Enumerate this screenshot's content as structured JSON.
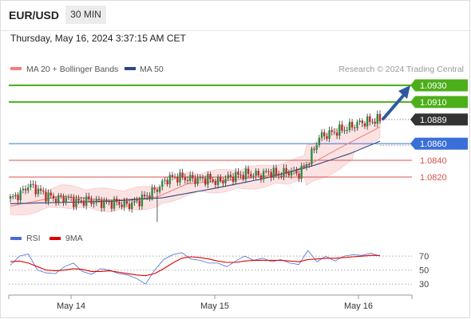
{
  "header": {
    "symbol": "EUR/USD",
    "timeframe": "30 MIN"
  },
  "datetime": "Thursday, May 16, 2024 3:37:15 AM CET",
  "legend": {
    "ma20": {
      "label": "MA 20 + Bollinger Bands",
      "color": "#f08080"
    },
    "ma50": {
      "label": "MA 50",
      "color": "#2c4a7f"
    }
  },
  "credit": "Research © 2024 Trading Central",
  "levels": [
    {
      "value": "1.0930",
      "type": "resistance",
      "color": "#4caf1a"
    },
    {
      "value": "1.0910",
      "type": "resistance",
      "color": "#4caf1a"
    },
    {
      "value": "1.0889",
      "type": "last-price",
      "color": "#333333"
    },
    {
      "value": "1.0860",
      "type": "pivot",
      "color": "#3a6fd8"
    },
    {
      "value": "1.0840",
      "type": "support",
      "color": "#d9534f"
    },
    {
      "value": "1.0820",
      "type": "support",
      "color": "#d9534f"
    }
  ],
  "rsi_panel": {
    "legend": {
      "rsi": {
        "label": "RSI",
        "color": "#4a6fd4"
      },
      "ma9": {
        "label": "9MA",
        "color": "#e00000"
      }
    },
    "levels": [
      "70",
      "50",
      "30"
    ]
  },
  "x_axis_labels": [
    "May 14",
    "May 15",
    "May 16"
  ],
  "chart_data": [
    {
      "type": "candlestick",
      "title": "",
      "series": [
        {
          "name": "MA 20 + Bollinger Bands",
          "role": "ma20-with-bands"
        },
        {
          "name": "MA 50",
          "role": "ma50"
        }
      ],
      "x_ticks": [
        "May 14",
        "May 15",
        "May 16"
      ],
      "y_levels": [
        1.093,
        1.091,
        1.0889,
        1.086,
        1.084,
        1.082
      ],
      "last_price": 1.0889,
      "ylim": [
        1.0765,
        1.0945
      ],
      "price_path": [
        [
          0,
          1.0794
        ],
        [
          4,
          1.08
        ],
        [
          7,
          1.081
        ],
        [
          10,
          1.0806
        ],
        [
          14,
          1.0798
        ],
        [
          18,
          1.0794
        ],
        [
          22,
          1.0795
        ],
        [
          26,
          1.079
        ],
        [
          30,
          1.0792
        ],
        [
          34,
          1.079
        ],
        [
          38,
          1.0789
        ],
        [
          42,
          1.0789
        ],
        [
          46,
          1.0786
        ],
        [
          50,
          1.079
        ],
        [
          54,
          1.0798
        ],
        [
          58,
          1.0806
        ],
        [
          62,
          1.0818
        ],
        [
          66,
          1.082
        ],
        [
          70,
          1.0818
        ],
        [
          74,
          1.0817
        ],
        [
          78,
          1.0818
        ],
        [
          82,
          1.0814
        ],
        [
          86,
          1.0819
        ],
        [
          90,
          1.0822
        ],
        [
          94,
          1.0824
        ],
        [
          98,
          1.0822
        ],
        [
          102,
          1.0826
        ],
        [
          106,
          1.0823
        ],
        [
          110,
          1.0826
        ],
        [
          114,
          1.0824
        ],
        [
          118,
          1.084
        ],
        [
          122,
          1.0868
        ],
        [
          126,
          1.0872
        ],
        [
          130,
          1.0876
        ],
        [
          134,
          1.088
        ],
        [
          138,
          1.0885
        ],
        [
          142,
          1.0887
        ],
        [
          146,
          1.0889
        ]
      ],
      "ma20_path": [
        [
          0,
          1.0785
        ],
        [
          20,
          1.0797
        ],
        [
          40,
          1.0792
        ],
        [
          58,
          1.0796
        ],
        [
          70,
          1.0812
        ],
        [
          90,
          1.0817
        ],
        [
          110,
          1.0825
        ],
        [
          120,
          1.0838
        ],
        [
          132,
          1.0858
        ],
        [
          146,
          1.088
        ]
      ],
      "ma50_path": [
        [
          0,
          1.0788
        ],
        [
          40,
          1.0791
        ],
        [
          60,
          1.0795
        ],
        [
          80,
          1.0806
        ],
        [
          100,
          1.0818
        ],
        [
          120,
          1.0834
        ],
        [
          134,
          1.0848
        ],
        [
          146,
          1.0863
        ]
      ]
    },
    {
      "type": "line",
      "title": "",
      "series": [
        {
          "name": "RSI",
          "values": [
            57,
            70,
            73,
            50,
            46,
            45,
            55,
            60,
            48,
            44,
            52,
            50,
            45,
            43,
            38,
            30,
            50,
            65,
            72,
            75,
            66,
            64,
            60,
            60,
            55,
            63,
            70,
            64,
            67,
            62,
            65,
            60,
            58,
            78,
            62,
            70,
            63,
            70,
            72,
            71,
            74,
            70
          ]
        },
        {
          "name": "9MA",
          "values": [
            62,
            63,
            60,
            55,
            50,
            49,
            50,
            52,
            51,
            48,
            48,
            49,
            47,
            45,
            43,
            42,
            45,
            52,
            60,
            67,
            69,
            68,
            66,
            63,
            61,
            61,
            63,
            64,
            64,
            64,
            64,
            63,
            62,
            65,
            66,
            67,
            67,
            68,
            69,
            70,
            71,
            71
          ]
        }
      ],
      "y_levels": [
        70,
        50,
        30
      ],
      "ylim": [
        20,
        85
      ]
    }
  ]
}
